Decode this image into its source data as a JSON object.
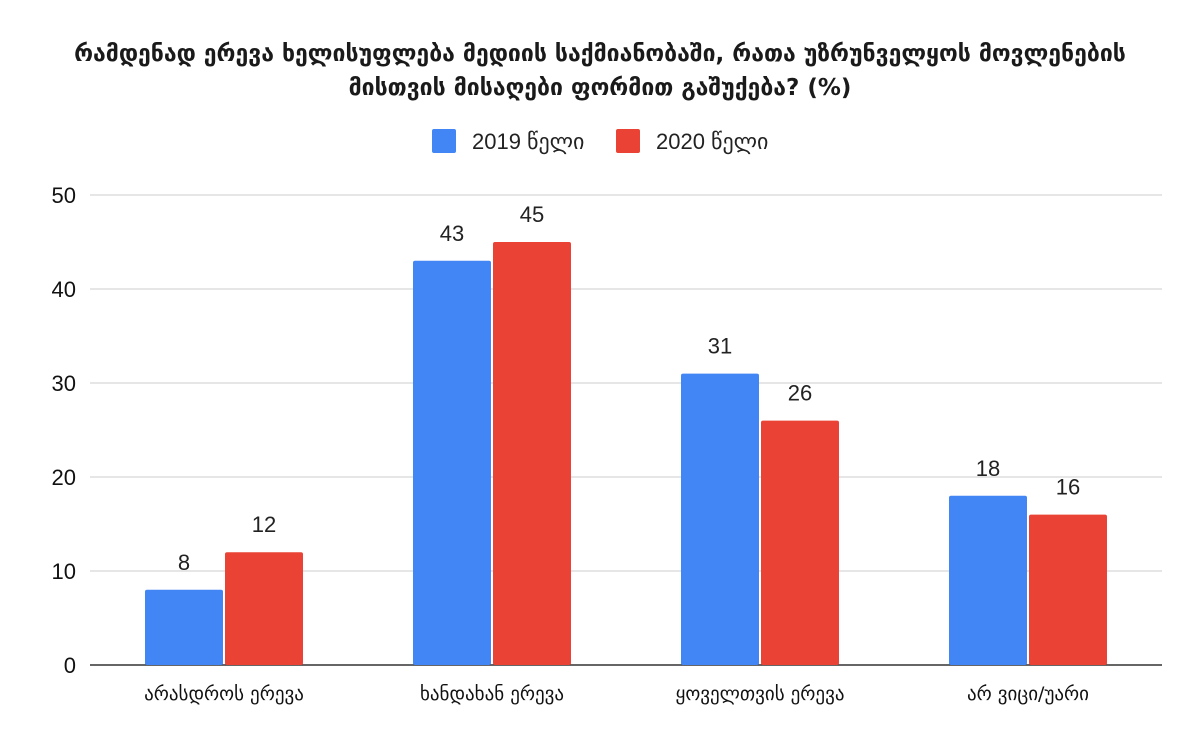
{
  "chart_data": {
    "type": "bar",
    "title": "რამდენად ერევა ხელისუფლება მედიის საქმიანობაში, რათა უზრუნველყოს მოვლენების",
    "subtitle": "მისთვის მისაღები ფორმით გაშუქება? (%)",
    "categories": [
      "არასდროს ერევა",
      "ხანდახან ერევა",
      "ყოველთვის ერევა",
      "არ ვიცი/უარი"
    ],
    "series": [
      {
        "name": "2019 წელი",
        "color": "#4285f4",
        "values": [
          8,
          43,
          31,
          18
        ]
      },
      {
        "name": "2020 წელი",
        "color": "#ea4335",
        "values": [
          12,
          45,
          26,
          16
        ]
      }
    ],
    "ylim": [
      0,
      50
    ],
    "yticks": [
      0,
      10,
      20,
      30,
      40,
      50
    ],
    "grid": true,
    "legend_position": "top-center",
    "xlabel": "",
    "ylabel": ""
  }
}
